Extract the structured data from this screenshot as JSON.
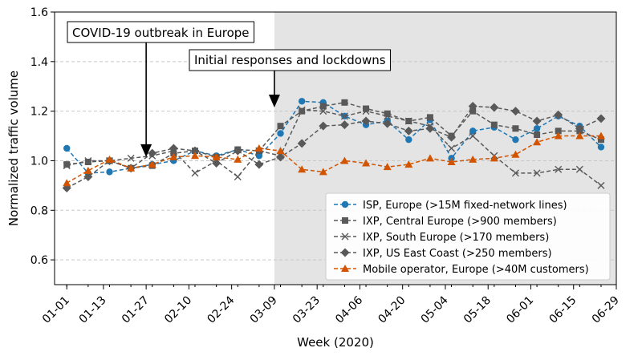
{
  "chart_data": {
    "type": "line",
    "title": "",
    "xlabel": "Week (2020)",
    "ylabel": "Normalized traffic volume",
    "ylim": [
      0.5,
      1.6
    ],
    "yticks": [
      0.6,
      0.8,
      1.0,
      1.2,
      1.4,
      1.6
    ],
    "ytick_labels": [
      "0.6",
      "0.8",
      "1.0",
      "1.2",
      "1.4",
      "1.6"
    ],
    "xlim_days": [
      -4,
      180
    ],
    "x_tick_labels": [
      "01-01",
      "01-13",
      "01-27",
      "02-10",
      "02-24",
      "03-09",
      "03-23",
      "04-06",
      "04-20",
      "05-04",
      "05-18",
      "06-01",
      "06-15",
      "06-29"
    ],
    "x_tick_dates": [
      "2020-01-01",
      "2020-01-13",
      "2020-01-27",
      "2020-02-10",
      "2020-02-24",
      "2020-03-09",
      "2020-03-23",
      "2020-04-06",
      "2020-04-20",
      "2020-05-04",
      "2020-05-18",
      "2020-06-01",
      "2020-06-15",
      "2020-06-29"
    ],
    "shaded_region": {
      "from": "2020-03-09",
      "to": "2020-06-29",
      "color": "#e4e4e4"
    },
    "grid": "horizontal dashed",
    "legend_position": "lower-right",
    "x": [
      "2020-01-01",
      "2020-01-08",
      "2020-01-15",
      "2020-01-22",
      "2020-01-29",
      "2020-02-05",
      "2020-02-12",
      "2020-02-19",
      "2020-02-26",
      "2020-03-04",
      "2020-03-11",
      "2020-03-18",
      "2020-03-25",
      "2020-04-01",
      "2020-04-08",
      "2020-04-15",
      "2020-04-22",
      "2020-04-29",
      "2020-05-06",
      "2020-05-13",
      "2020-05-20",
      "2020-05-27",
      "2020-06-03",
      "2020-06-10",
      "2020-06-17",
      "2020-06-24"
    ],
    "series": [
      {
        "name": "ISP, Europe (>15M fixed-network lines)",
        "color": "#1f77b4",
        "marker": "circle",
        "x": [
          "2020-01-01",
          "2020-01-08",
          "2020-01-15",
          "2020-01-22",
          "2020-01-29",
          "2020-02-05",
          "2020-02-12",
          "2020-02-19",
          "2020-02-26",
          "2020-03-04",
          "2020-03-11",
          "2020-03-18",
          "2020-03-25",
          "2020-04-01",
          "2020-04-08",
          "2020-04-15",
          "2020-04-22",
          "2020-04-29",
          "2020-05-06",
          "2020-05-13",
          "2020-05-20",
          "2020-05-27",
          "2020-06-03",
          "2020-06-10",
          "2020-06-17",
          "2020-06-24"
        ],
        "values": [
          1.05,
          0.95,
          0.955,
          0.97,
          0.985,
          1.0,
          1.04,
          1.02,
          1.045,
          1.02,
          1.11,
          1.24,
          1.235,
          1.18,
          1.145,
          1.16,
          1.085,
          1.165,
          1.01,
          1.12,
          1.135,
          1.085,
          1.13,
          1.18,
          1.14,
          1.055
        ]
      },
      {
        "name": "IXP, Central Europe (>900 members)",
        "color": "#595959",
        "marker": "square",
        "x": [
          "2020-01-01",
          "2020-01-08",
          "2020-01-15",
          "2020-01-22",
          "2020-01-29",
          "2020-02-05",
          "2020-02-12",
          "2020-02-19",
          "2020-02-26",
          "2020-03-04",
          "2020-03-11",
          "2020-03-18",
          "2020-03-25",
          "2020-04-01",
          "2020-04-08",
          "2020-04-15",
          "2020-04-22",
          "2020-04-29",
          "2020-05-06",
          "2020-05-13",
          "2020-05-20",
          "2020-05-27",
          "2020-06-03",
          "2020-06-10",
          "2020-06-17",
          "2020-06-24"
        ],
        "values": [
          0.985,
          0.995,
          1.0,
          0.97,
          0.98,
          1.03,
          1.04,
          1.015,
          1.045,
          1.04,
          1.14,
          1.2,
          1.22,
          1.235,
          1.21,
          1.19,
          1.16,
          1.175,
          1.1,
          1.2,
          1.145,
          1.13,
          1.105,
          1.12,
          1.12,
          1.085
        ]
      },
      {
        "name": "IXP, South Europe   (>170 members)",
        "color": "#595959",
        "marker": "x",
        "x": [
          "2020-01-01",
          "2020-01-08",
          "2020-01-15",
          "2020-01-22",
          "2020-01-29",
          "2020-02-05",
          "2020-02-12",
          "2020-02-19",
          "2020-02-26",
          "2020-03-04",
          "2020-03-11",
          "2020-03-18",
          "2020-03-25",
          "2020-04-01",
          "2020-04-08",
          "2020-04-15",
          "2020-04-22",
          "2020-04-29",
          "2020-05-06",
          "2020-05-13",
          "2020-05-20",
          "2020-05-27",
          "2020-06-03",
          "2020-06-10",
          "2020-06-17",
          "2020-06-24"
        ],
        "values": [
          0.98,
          1.0,
          1.0,
          1.01,
          1.02,
          1.04,
          0.95,
          1.0,
          0.935,
          1.04,
          1.02,
          1.205,
          1.2,
          1.18,
          1.2,
          1.18,
          1.16,
          1.14,
          1.05,
          1.1,
          1.02,
          0.95,
          0.95,
          0.965,
          0.965,
          0.9
        ]
      },
      {
        "name": "IXP, US East Coast  (>250 members)",
        "color": "#595959",
        "marker": "diamond",
        "x": [
          "2020-01-01",
          "2020-01-08",
          "2020-01-15",
          "2020-01-22",
          "2020-01-29",
          "2020-02-05",
          "2020-02-12",
          "2020-02-19",
          "2020-02-26",
          "2020-03-04",
          "2020-03-11",
          "2020-03-18",
          "2020-03-25",
          "2020-04-01",
          "2020-04-08",
          "2020-04-15",
          "2020-04-22",
          "2020-04-29",
          "2020-05-06",
          "2020-05-13",
          "2020-05-20",
          "2020-05-27",
          "2020-06-03",
          "2020-06-10",
          "2020-06-17",
          "2020-06-24"
        ],
        "values": [
          0.89,
          0.935,
          1.0,
          0.97,
          1.03,
          1.05,
          1.04,
          0.99,
          1.04,
          0.985,
          1.015,
          1.07,
          1.14,
          1.145,
          1.16,
          1.15,
          1.12,
          1.13,
          1.095,
          1.22,
          1.215,
          1.2,
          1.16,
          1.185,
          1.13,
          1.17
        ]
      },
      {
        "name": "Mobile operator, Europe (>40M customers)",
        "color": "#d35400",
        "marker": "triangle-up",
        "x": [
          "2020-01-01",
          "2020-01-08",
          "2020-01-15",
          "2020-01-22",
          "2020-01-29",
          "2020-02-05",
          "2020-02-12",
          "2020-02-19",
          "2020-02-26",
          "2020-03-04",
          "2020-03-11",
          "2020-03-18",
          "2020-03-25",
          "2020-04-01",
          "2020-04-08",
          "2020-04-15",
          "2020-04-22",
          "2020-04-29",
          "2020-05-06",
          "2020-05-13",
          "2020-05-20",
          "2020-05-27",
          "2020-06-03",
          "2020-06-10",
          "2020-06-17",
          "2020-06-24"
        ],
        "values": [
          0.91,
          0.96,
          1.005,
          0.97,
          0.985,
          1.015,
          1.02,
          1.015,
          1.005,
          1.05,
          1.04,
          0.965,
          0.955,
          1.0,
          0.99,
          0.975,
          0.985,
          1.01,
          0.995,
          1.005,
          1.01,
          1.025,
          1.075,
          1.1,
          1.1,
          1.1
        ]
      }
    ],
    "annotations": [
      {
        "text": "COVID-19 outbreak in Europe",
        "arrow_to_date": "2020-01-27",
        "arrow_to_y": 1.015
      },
      {
        "text": "Initial responses and lockdowns",
        "arrow_to_date": "2020-03-09",
        "arrow_to_y": 1.215
      }
    ]
  }
}
